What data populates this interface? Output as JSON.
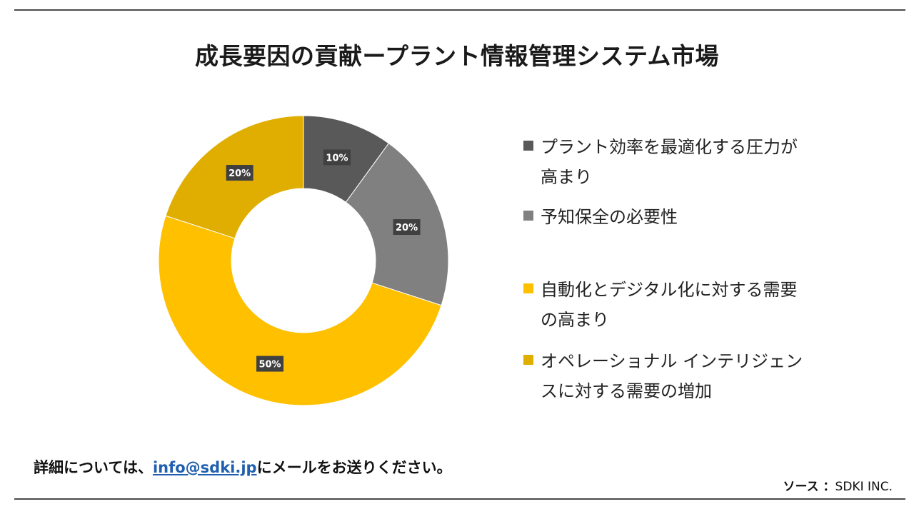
{
  "title": "成長要因の貢献ープラント情報管理システム市場",
  "chart_data": {
    "type": "pie",
    "donut": true,
    "categories": [
      "プラント効率を最適化する圧力が高まり",
      "予知保全の必要性",
      "自動化とデジタル化に対する需要の高まり",
      "オペレーショナル インテリジェンスに対する需要の増加"
    ],
    "values": [
      10,
      20,
      50,
      20
    ],
    "data_labels": [
      "10%",
      "20%",
      "50%",
      "20%"
    ],
    "colors": [
      "#595959",
      "#808080",
      "#FFC000",
      "#E0AE00"
    ],
    "legend_position": "right",
    "title": ""
  },
  "legend": {
    "items": [
      {
        "line1": "プラント効率を最適化する圧力が",
        "line2": "高まり",
        "color": "#595959"
      },
      {
        "line1": "予知保全の必要性",
        "line2": "",
        "color": "#808080"
      },
      {
        "line1": "自動化とデジタル化に対する需要",
        "line2": "の高まり",
        "color": "#FFC000"
      },
      {
        "line1": "オペレーショナル インテリジェン",
        "line2": "スに対する需要の増加",
        "color": "#E0AE00"
      }
    ]
  },
  "footer": {
    "prefix": "詳細については、",
    "email": "info@sdki.jp",
    "suffix": "にメールをお送りください。"
  },
  "source": {
    "label": "ソース ：",
    "value": "SDKI INC."
  }
}
